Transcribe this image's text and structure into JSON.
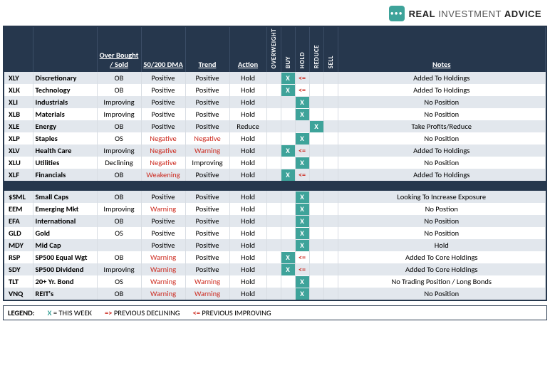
{
  "brand": {
    "word1": "REAL",
    "word2": "INVESTMENT",
    "word3": "ADVICE"
  },
  "headers": {
    "obos": "Over Bought / Sold",
    "dma": "50/200 DMA",
    "trend": "Trend",
    "action": "Action",
    "notes": "Notes",
    "signals": [
      "OVERWEIGHT",
      "BUY",
      "HOLD",
      "REDUCE",
      "SELL"
    ]
  },
  "colors": {
    "header_bg": "#26374d",
    "band_bg": "#e2e7ed",
    "accent": "#3ea39a",
    "danger": "#cc2a1f"
  },
  "group1": [
    {
      "t": "XLY",
      "n": "Discretionary",
      "o": "OB",
      "d": "Positive",
      "tr": "Positive",
      "a": "Hold",
      "buy": "X",
      "hold": "<=",
      "note": "Added To Holdings",
      "band": true
    },
    {
      "t": "XLK",
      "n": "Technology",
      "o": "OB",
      "d": "Positive",
      "tr": "Positive",
      "a": "Hold",
      "buy": "X",
      "hold": "<=",
      "note": "Added To Holdings",
      "band": false
    },
    {
      "t": "XLI",
      "n": "Industrials",
      "o": "Improving",
      "d": "Positive",
      "tr": "Positive",
      "a": "Hold",
      "hold": "X",
      "note": "No Position",
      "band": true
    },
    {
      "t": "XLB",
      "n": "Materials",
      "o": "Improving",
      "d": "Positive",
      "tr": "Positive",
      "a": "Hold",
      "hold": "X",
      "note": "No Position",
      "band": false
    },
    {
      "t": "XLE",
      "n": "Energy",
      "o": "OB",
      "d": "Positive",
      "tr": "Positive",
      "a": "Reduce",
      "reduce": "X",
      "note": "Take Profits/Reduce",
      "band": true
    },
    {
      "t": "XLP",
      "n": "Staples",
      "o": "OS",
      "d": "Negative",
      "dClass": "neg",
      "tr": "Negative",
      "trClass": "neg",
      "a": "Hold",
      "hold": "X",
      "note": "No Position",
      "band": false
    },
    {
      "t": "XLV",
      "n": "Health Care",
      "o": "Improving",
      "d": "Negative",
      "dClass": "neg",
      "tr": "Warning",
      "trClass": "warn",
      "a": "Hold",
      "buy": "X",
      "hold": "<=",
      "note": "Added To Holdings",
      "band": true
    },
    {
      "t": "XLU",
      "n": "Utilities",
      "o": "Declining",
      "d": "Negative",
      "dClass": "neg",
      "tr": "Improving",
      "a": "Hold",
      "hold": "X",
      "note": "No Position",
      "band": false
    },
    {
      "t": "XLF",
      "n": "Financials",
      "o": "OB",
      "d": "Weakening",
      "dClass": "weak",
      "tr": "Positive",
      "a": "Hold",
      "buy": "X",
      "hold": "<=",
      "note": "Added To Holdings",
      "band": true
    }
  ],
  "group2": [
    {
      "t": "$SML",
      "n": "Small Caps",
      "o": "OB",
      "d": "Positive",
      "tr": "Positive",
      "a": "Hold",
      "hold": "X",
      "note": "Looking To Increase Exposure",
      "band": true
    },
    {
      "t": "EEM",
      "n": "Emerging Mkt",
      "o": "Improving",
      "d": "Warning",
      "dClass": "warn",
      "tr": "Positive",
      "a": "Hold",
      "hold": "X",
      "note": "No Postion",
      "band": false
    },
    {
      "t": "EFA",
      "n": "International",
      "o": "OB",
      "d": "Positive",
      "tr": "Positive",
      "a": "Hold",
      "hold": "X",
      "note": "No Position",
      "band": true
    },
    {
      "t": "GLD",
      "n": "Gold",
      "o": "OS",
      "d": "Positive",
      "tr": "Positive",
      "a": "Hold",
      "hold": "X",
      "note": "No Position",
      "band": false
    },
    {
      "t": "MDY",
      "n": "Mid Cap",
      "o": "",
      "d": "Positive",
      "tr": "Positive",
      "a": "Hold",
      "hold": "X",
      "note": "Hold",
      "band": true
    },
    {
      "t": "RSP",
      "n": "SP500 Equal Wgt",
      "o": "OB",
      "d": "Warning",
      "dClass": "warn",
      "tr": "Positive",
      "a": "Hold",
      "buy": "X",
      "hold": "<=",
      "note": "Added To Core Holdings",
      "band": false
    },
    {
      "t": "SDY",
      "n": "SP500 Dividend",
      "o": "Improving",
      "d": "Warning",
      "dClass": "warn",
      "tr": "Positive",
      "a": "Hold",
      "buy": "X",
      "hold": "<=",
      "note": "Added To Core Holdings",
      "band": true
    },
    {
      "t": "TLT",
      "n": "20+ Yr. Bond",
      "o": "OS",
      "d": "Warning",
      "dClass": "warn",
      "tr": "Warning",
      "trClass": "warn",
      "a": "Hold",
      "hold": "X",
      "note": "No Trading Position / Long Bonds",
      "band": false
    },
    {
      "t": "VNQ",
      "n": "REIT's",
      "o": "OB",
      "d": "Warning",
      "dClass": "warn",
      "tr": "Warning",
      "trClass": "warn",
      "a": "Hold",
      "hold": "X",
      "note": "No Position",
      "band": true
    }
  ],
  "legend": {
    "label": "LEGEND:",
    "thisweek": "= THIS WEEK",
    "prev_decl": "PREVIOUS DECLINING",
    "prev_impr": "PREVIOUS IMPROVING"
  }
}
